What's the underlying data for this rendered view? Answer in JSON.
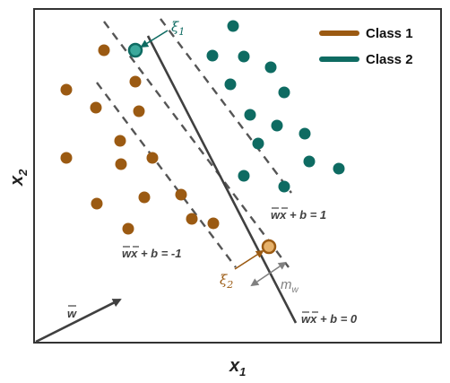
{
  "axes": {
    "xlabel": "x",
    "xlabel_sub": "1",
    "ylabel": "x",
    "ylabel_sub": "2"
  },
  "legend": [
    {
      "label": "Class 1",
      "color": "#9B5A12"
    },
    {
      "label": "Class 2",
      "color": "#0E6B62"
    }
  ],
  "vector_label": "w",
  "equations": {
    "upper": {
      "w": "w",
      "x": "x",
      "rest": " + b = 1"
    },
    "lower": {
      "w": "w",
      "x": "x",
      "rest": " + b = -1"
    },
    "center": {
      "w": "w",
      "x": "x",
      "rest": " + b = 0"
    }
  },
  "slack": {
    "xi1": {
      "symbol": "ξ",
      "sub": "1"
    },
    "xi2": {
      "symbol": "ξ",
      "sub": "2"
    }
  },
  "margin_label": {
    "symbol": "m",
    "sub": "w"
  },
  "colors": {
    "class1": "#9B5A12",
    "class2": "#0E6B62",
    "line": "#404040",
    "margin_arrow": "#808080"
  }
}
